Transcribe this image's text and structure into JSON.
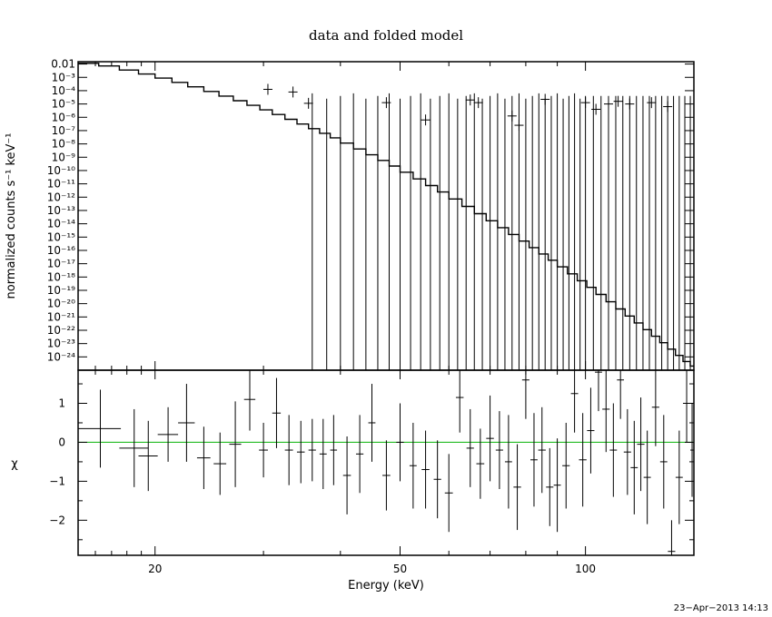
{
  "chart_data": [
    {
      "type": "line",
      "panel": "spectrum",
      "title": "data and folded model",
      "ylabel": "normalized counts s⁻¹ keV⁻¹",
      "xlabel": "",
      "xscale": "log",
      "yscale": "log",
      "xlim": [
        15,
        150
      ],
      "ylim": [
        1e-25,
        0.015
      ],
      "ytick_labels": [
        "0.01",
        "10⁻³",
        "10⁻⁴",
        "10⁻⁵",
        "10⁻⁶",
        "10⁻⁷",
        "10⁻⁸",
        "10⁻⁹",
        "10⁻¹⁰",
        "10⁻¹¹",
        "10⁻¹²",
        "10⁻¹³",
        "10⁻¹⁴",
        "10⁻¹⁵",
        "10⁻¹⁶",
        "10⁻¹⁷",
        "10⁻¹⁸",
        "10⁻¹⁹",
        "10⁻²⁰",
        "10⁻²¹",
        "10⁻²²",
        "10⁻²³",
        "10⁻²⁴"
      ],
      "model_log10_range": [
        -1.95,
        -24.8
      ],
      "data_points": [
        {
          "x": 30.5,
          "log10y": -3.9
        },
        {
          "x": 33.5,
          "log10y": -4.1
        },
        {
          "x": 35.5,
          "log10y": -4.95
        },
        {
          "x": 47.5,
          "log10y": -4.9
        },
        {
          "x": 55.0,
          "log10y": -6.2
        },
        {
          "x": 65.0,
          "log10y": -4.7
        },
        {
          "x": 67.0,
          "log10y": -4.9
        },
        {
          "x": 76.0,
          "log10y": -5.9
        },
        {
          "x": 78.0,
          "log10y": -6.6
        },
        {
          "x": 86.0,
          "log10y": -4.65
        },
        {
          "x": 100.0,
          "log10y": -4.9
        },
        {
          "x": 104.0,
          "log10y": -5.4
        },
        {
          "x": 109.0,
          "log10y": -5.0
        },
        {
          "x": 113.0,
          "log10y": -4.8
        },
        {
          "x": 118.0,
          "log10y": -5.0
        },
        {
          "x": 128.0,
          "log10y": -4.9
        },
        {
          "x": 136.0,
          "log10y": -5.2
        }
      ],
      "upper_limit_bins": [
        36,
        38,
        40,
        42,
        44,
        46,
        48,
        50,
        52,
        54,
        56,
        58,
        60,
        62,
        64,
        66,
        68,
        70,
        72,
        74,
        76,
        78,
        80,
        82,
        84,
        86,
        88,
        90,
        92,
        94,
        96,
        98,
        100,
        103,
        106,
        109,
        112,
        115,
        118,
        121,
        124,
        127,
        130,
        133,
        136,
        139,
        142,
        145,
        148
      ]
    },
    {
      "type": "scatter",
      "panel": "residuals",
      "xlabel": "Energy (keV)",
      "ylabel": "χ",
      "xscale": "log",
      "xlim": [
        15,
        150
      ],
      "ylim": [
        -2.9,
        1.85
      ],
      "xtick_labels": [
        "20",
        "50",
        "100"
      ],
      "ytick_labels": [
        "1",
        "0",
        "−1",
        "−2"
      ],
      "zero_line_color": "#22bb22",
      "points": [
        {
          "x": 16.3,
          "dx": 1.3,
          "y": 0.35,
          "dy": 1.0
        },
        {
          "x": 18.5,
          "dx": 1.0,
          "y": -0.15,
          "dy": 1.0
        },
        {
          "x": 19.5,
          "dx": 0.7,
          "y": -0.35,
          "dy": 0.9
        },
        {
          "x": 21.0,
          "dx": 0.8,
          "y": 0.2,
          "dy": 0.7
        },
        {
          "x": 22.5,
          "dx": 0.7,
          "y": 0.5,
          "dy": 1.0
        },
        {
          "x": 24.0,
          "dx": 0.6,
          "y": -0.4,
          "dy": 0.8
        },
        {
          "x": 25.5,
          "dx": 0.6,
          "y": -0.55,
          "dy": 0.8
        },
        {
          "x": 27.0,
          "dx": 0.6,
          "y": -0.05,
          "dy": 1.1
        },
        {
          "x": 28.5,
          "dx": 0.6,
          "y": 1.1,
          "dy": 0.8
        },
        {
          "x": 30.0,
          "dx": 0.5,
          "y": -0.2,
          "dy": 0.7
        },
        {
          "x": 31.5,
          "dx": 0.5,
          "y": 0.75,
          "dy": 0.9
        },
        {
          "x": 33.0,
          "dx": 0.5,
          "y": -0.2,
          "dy": 0.9
        },
        {
          "x": 34.5,
          "dx": 0.5,
          "y": -0.25,
          "dy": 0.8
        },
        {
          "x": 36.0,
          "dx": 0.5,
          "y": -0.2,
          "dy": 0.8
        },
        {
          "x": 37.5,
          "dx": 0.5,
          "y": -0.3,
          "dy": 0.9
        },
        {
          "x": 39.0,
          "dx": 0.5,
          "y": -0.2,
          "dy": 0.9
        },
        {
          "x": 41.0,
          "dx": 0.6,
          "y": -0.85,
          "dy": 1.0
        },
        {
          "x": 43.0,
          "dx": 0.6,
          "y": -0.3,
          "dy": 1.0
        },
        {
          "x": 45.0,
          "dx": 0.6,
          "y": 0.5,
          "dy": 1.0
        },
        {
          "x": 47.5,
          "dx": 0.7,
          "y": -0.85,
          "dy": 0.9
        },
        {
          "x": 50.0,
          "dx": 0.7,
          "y": 0.0,
          "dy": 1.0
        },
        {
          "x": 52.5,
          "dx": 0.7,
          "y": -0.6,
          "dy": 1.1
        },
        {
          "x": 55.0,
          "dx": 0.8,
          "y": -0.7,
          "dy": 1.0
        },
        {
          "x": 57.5,
          "dx": 0.8,
          "y": -0.95,
          "dy": 1.0
        },
        {
          "x": 60.0,
          "dx": 0.9,
          "y": -1.3,
          "dy": 1.0
        },
        {
          "x": 62.5,
          "dx": 0.9,
          "y": 1.15,
          "dy": 0.9
        },
        {
          "x": 65.0,
          "dx": 0.9,
          "y": -0.15,
          "dy": 1.0
        },
        {
          "x": 67.5,
          "dx": 1.0,
          "y": -0.55,
          "dy": 0.9
        },
        {
          "x": 70.0,
          "dx": 1.0,
          "y": 0.1,
          "dy": 1.1
        },
        {
          "x": 72.5,
          "dx": 1.0,
          "y": -0.2,
          "dy": 1.0
        },
        {
          "x": 75.0,
          "dx": 1.0,
          "y": -0.5,
          "dy": 1.2
        },
        {
          "x": 77.5,
          "dx": 1.1,
          "y": -1.15,
          "dy": 1.1
        },
        {
          "x": 80.0,
          "dx": 1.1,
          "y": 1.6,
          "dy": 1.0
        },
        {
          "x": 82.5,
          "dx": 1.1,
          "y": -0.45,
          "dy": 1.2
        },
        {
          "x": 85.0,
          "dx": 1.2,
          "y": -0.2,
          "dy": 1.1
        },
        {
          "x": 87.5,
          "dx": 1.2,
          "y": -1.15,
          "dy": 1.0
        },
        {
          "x": 90.0,
          "dx": 1.2,
          "y": -1.1,
          "dy": 1.2
        },
        {
          "x": 93.0,
          "dx": 1.3,
          "y": -0.6,
          "dy": 1.1
        },
        {
          "x": 96.0,
          "dx": 1.3,
          "y": 1.25,
          "dy": 1.0
        },
        {
          "x": 99.0,
          "dx": 1.4,
          "y": -0.45,
          "dy": 1.2
        },
        {
          "x": 102.0,
          "dx": 1.4,
          "y": 0.3,
          "dy": 1.1
        },
        {
          "x": 105.0,
          "dx": 1.4,
          "y": 1.8,
          "dy": 1.0
        },
        {
          "x": 108.0,
          "dx": 1.5,
          "y": 0.85,
          "dy": 1.1
        },
        {
          "x": 111.0,
          "dx": 1.5,
          "y": -0.2,
          "dy": 1.2
        },
        {
          "x": 114.0,
          "dx": 1.5,
          "y": 1.6,
          "dy": 1.0
        },
        {
          "x": 117.0,
          "dx": 1.6,
          "y": -0.25,
          "dy": 1.1
        },
        {
          "x": 120.0,
          "dx": 1.6,
          "y": -0.65,
          "dy": 1.2
        },
        {
          "x": 123.0,
          "dx": 1.7,
          "y": -0.05,
          "dy": 1.2
        },
        {
          "x": 126.0,
          "dx": 1.7,
          "y": -0.9,
          "dy": 1.2
        },
        {
          "x": 130.0,
          "dx": 1.8,
          "y": 0.9,
          "dy": 1.0
        },
        {
          "x": 134.0,
          "dx": 1.8,
          "y": -0.5,
          "dy": 1.2
        },
        {
          "x": 138.0,
          "dx": 1.9,
          "y": -2.8,
          "dy": 0.8
        },
        {
          "x": 142.0,
          "dx": 1.9,
          "y": -0.9,
          "dy": 1.2
        },
        {
          "x": 146.0,
          "dx": 2.0,
          "y": 1.0,
          "dy": 1.0
        },
        {
          "x": 149.0,
          "dx": 1.0,
          "y": -0.2,
          "dy": 1.2
        }
      ]
    }
  ],
  "timestamp": "23−Apr−2013 14:13"
}
